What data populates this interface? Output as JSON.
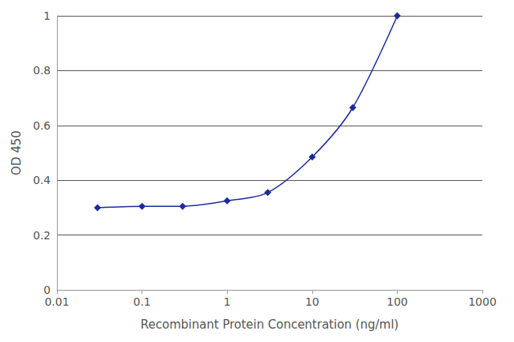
{
  "chart_data": {
    "type": "line",
    "x_label": "Recombinant Protein Concentration (ng/ml)",
    "y_label": "OD 450",
    "x": [
      0.03,
      0.1,
      0.3,
      1,
      3,
      10,
      30,
      100
    ],
    "values": [
      0.3,
      0.305,
      0.305,
      0.325,
      0.355,
      0.485,
      0.665,
      1.0
    ],
    "color": "#1c2a9c",
    "marker": "diamond",
    "log": "x",
    "xlim": [
      0.01,
      1000
    ],
    "xticks": [
      0.01,
      0.1,
      1,
      10,
      100,
      1000
    ],
    "ylim": [
      0,
      1
    ],
    "yticks": [
      0,
      0.2,
      0.4,
      0.6,
      0.8,
      1
    ],
    "grid": true
  }
}
